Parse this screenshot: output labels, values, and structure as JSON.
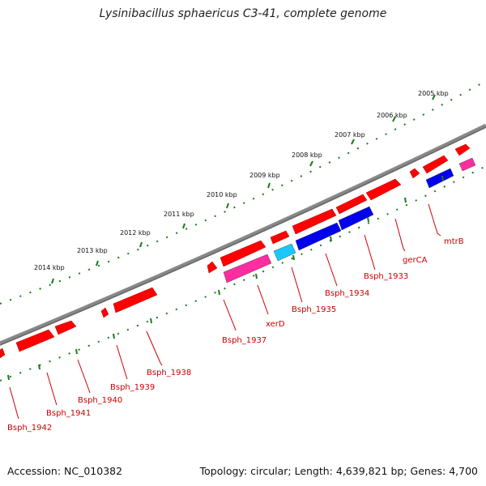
{
  "title": "Lysinibacillus sphaericus C3-41, complete genome",
  "footer": {
    "accession": "Accession: NC_010382",
    "summary": "Topology: circular; Length: 4,639,821 bp; Genes: 4,700"
  },
  "colors": {
    "backbone": "#888888",
    "ticks": "#1b7a1b",
    "label": "#cc0000",
    "cds_red": "#ff0000",
    "cds_blue": "#0000ee",
    "cds_cyan": "#19c8ff",
    "cds_pink": "#ff2d9f"
  },
  "scale_labels": [
    "2005 kbp",
    "2006 kbp",
    "2007 kbp",
    "2008 kbp",
    "2009 kbp",
    "2010 kbp",
    "2011 kbp",
    "2012 kbp",
    "2013 kbp",
    "2014 kbp"
  ],
  "gene_labels": [
    "mtrB",
    "gerCA",
    "Bsph_1933",
    "Bsph_1934",
    "Bsph_1935",
    "xerD",
    "Bsph_1937",
    "Bsph_1938",
    "Bsph_1939",
    "Bsph_1940",
    "Bsph_1941",
    "Bsph_1942"
  ]
}
